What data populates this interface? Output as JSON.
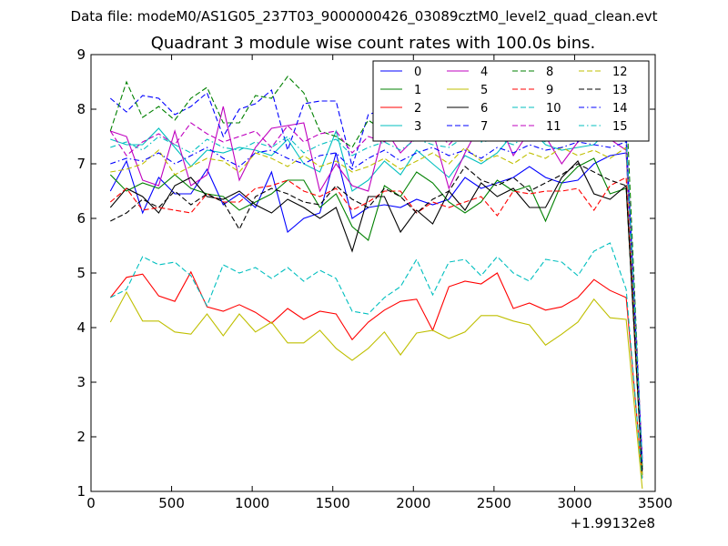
{
  "header": {
    "datafile": "Data file: modeM0/AS1G05_237T03_9000000426_03089cztM0_level2_quad_clean.evt"
  },
  "chart_data": {
    "type": "line",
    "title": "Quadrant 3 module wise count rates with 100.0s bins.",
    "xlabel": "",
    "ylabel": "",
    "offset_label": "+1.99132e8",
    "xlim": [
      0,
      3500
    ],
    "ylim": [
      1,
      9
    ],
    "xticks": [
      0,
      500,
      1000,
      1500,
      2000,
      2500,
      3000,
      3500
    ],
    "xtick_labels": [
      "0",
      "500",
      "1000",
      "1500",
      "2000",
      "2500",
      "3000",
      "3500"
    ],
    "yticks": [
      1,
      2,
      3,
      4,
      5,
      6,
      7,
      8,
      9
    ],
    "ytick_labels": [
      "1",
      "2",
      "3",
      "4",
      "5",
      "6",
      "7",
      "8",
      "9"
    ],
    "grid": false,
    "legend_position": "top-right",
    "legend_columns": 4,
    "x": [
      120,
      220,
      320,
      420,
      520,
      620,
      720,
      820,
      920,
      1020,
      1120,
      1220,
      1320,
      1420,
      1520,
      1620,
      1720,
      1820,
      1920,
      2020,
      2120,
      2220,
      2320,
      2420,
      2520,
      2620,
      2720,
      2820,
      2920,
      3020,
      3120,
      3220,
      3320,
      3420
    ],
    "series": [
      {
        "name": "0",
        "color": "#0000ff",
        "dash": "solid",
        "values": [
          6.5,
          7.05,
          6.1,
          6.75,
          6.45,
          6.45,
          6.9,
          6.25,
          6.45,
          6.2,
          6.85,
          5.75,
          6.0,
          6.1,
          7.2,
          6.0,
          6.2,
          6.25,
          6.2,
          6.35,
          6.25,
          6.35,
          6.75,
          6.55,
          6.65,
          6.75,
          6.95,
          6.75,
          6.65,
          6.7,
          7.0,
          7.15,
          7.2,
          1.4
        ]
      },
      {
        "name": "1",
        "color": "#008000",
        "dash": "solid",
        "values": [
          6.8,
          6.5,
          6.65,
          6.55,
          6.8,
          6.55,
          6.45,
          6.4,
          6.15,
          6.3,
          6.45,
          6.7,
          6.7,
          6.2,
          6.45,
          5.85,
          5.6,
          6.6,
          6.4,
          6.85,
          6.65,
          6.3,
          6.1,
          6.3,
          6.7,
          6.5,
          6.6,
          5.95,
          6.65,
          6.95,
          7.1,
          6.45,
          6.55,
          1.4
        ]
      },
      {
        "name": "2",
        "color": "#ff0000",
        "dash": "solid",
        "values": [
          4.55,
          4.92,
          4.98,
          4.58,
          4.48,
          5.02,
          4.38,
          4.3,
          4.42,
          4.28,
          4.08,
          4.35,
          4.15,
          4.3,
          4.25,
          3.78,
          4.1,
          4.32,
          4.48,
          4.52,
          3.95,
          4.75,
          4.85,
          4.8,
          5.0,
          4.35,
          4.45,
          4.32,
          4.38,
          4.55,
          4.88,
          4.68,
          4.55,
          1.25
        ]
      },
      {
        "name": "3",
        "color": "#00bfbf",
        "dash": "solid",
        "values": [
          7.45,
          7.35,
          7.35,
          7.65,
          7.3,
          6.95,
          7.25,
          7.2,
          7.3,
          7.25,
          7.15,
          7.45,
          7.0,
          6.85,
          7.6,
          6.5,
          6.7,
          7.05,
          6.8,
          7.25,
          7.0,
          6.75,
          7.15,
          7.0,
          7.2,
          7.55,
          7.65,
          7.35,
          7.25,
          7.3,
          7.35,
          7.65,
          7.5,
          1.45
        ]
      },
      {
        "name": "4",
        "color": "#bf00bf",
        "dash": "solid",
        "values": [
          7.6,
          7.5,
          6.7,
          6.6,
          7.6,
          6.6,
          6.8,
          8.05,
          6.7,
          7.3,
          7.65,
          7.7,
          7.75,
          6.5,
          7.0,
          6.6,
          6.5,
          7.65,
          7.2,
          7.5,
          7.6,
          6.55,
          7.2,
          7.75,
          7.85,
          7.15,
          7.6,
          7.5,
          7.0,
          7.4,
          7.6,
          7.45,
          7.25,
          1.6
        ]
      },
      {
        "name": "5",
        "color": "#bfbf00",
        "dash": "solid",
        "values": [
          4.1,
          4.65,
          4.12,
          4.12,
          3.92,
          3.88,
          4.25,
          3.85,
          4.25,
          3.92,
          4.1,
          3.72,
          3.72,
          3.95,
          3.62,
          3.4,
          3.62,
          3.92,
          3.5,
          3.9,
          3.95,
          3.8,
          3.92,
          4.22,
          4.22,
          4.12,
          4.05,
          3.68,
          3.88,
          4.1,
          4.52,
          4.18,
          4.15,
          1.05
        ]
      },
      {
        "name": "6",
        "color": "#000000",
        "dash": "solid",
        "values": [
          6.2,
          6.55,
          6.4,
          6.1,
          6.6,
          6.75,
          6.4,
          6.35,
          6.5,
          6.25,
          6.1,
          6.35,
          6.2,
          6.0,
          6.2,
          5.4,
          6.4,
          6.4,
          5.75,
          6.15,
          5.9,
          6.5,
          6.15,
          6.65,
          6.4,
          6.55,
          6.2,
          6.2,
          6.75,
          7.05,
          6.45,
          6.35,
          6.6,
          1.3
        ]
      },
      {
        "name": "7",
        "color": "#0000ff",
        "dash": "dashed",
        "values": [
          8.2,
          7.95,
          8.25,
          8.2,
          7.9,
          8.05,
          8.3,
          7.5,
          8.0,
          8.1,
          8.35,
          7.25,
          8.1,
          8.15,
          8.15,
          6.95,
          7.9,
          8.0,
          7.9,
          8.0,
          8.05,
          7.6,
          8.0,
          8.1,
          7.6,
          8.2,
          8.05,
          8.4,
          8.2,
          8.85,
          8.3,
          8.2,
          7.55,
          1.5
        ]
      },
      {
        "name": "8",
        "color": "#008000",
        "dash": "dashed",
        "values": [
          7.6,
          8.5,
          7.85,
          8.05,
          7.8,
          8.2,
          8.4,
          7.75,
          7.75,
          8.25,
          8.2,
          8.6,
          8.3,
          7.6,
          7.5,
          7.3,
          7.8,
          7.6,
          7.7,
          7.9,
          7.8,
          7.65,
          8.0,
          8.1,
          7.85,
          8.0,
          8.2,
          7.7,
          7.95,
          8.1,
          7.95,
          7.75,
          8.15,
          1.45
        ]
      },
      {
        "name": "9",
        "color": "#ff0000",
        "dash": "dashed",
        "values": [
          6.3,
          6.55,
          6.15,
          6.2,
          6.15,
          6.1,
          6.45,
          6.3,
          6.3,
          6.55,
          6.6,
          6.7,
          6.5,
          6.4,
          6.55,
          6.15,
          6.3,
          6.5,
          6.5,
          6.1,
          6.3,
          6.2,
          6.3,
          6.4,
          6.05,
          6.5,
          6.45,
          6.5,
          6.5,
          6.55,
          6.15,
          6.6,
          6.75,
          1.35
        ]
      },
      {
        "name": "10",
        "color": "#00bfbf",
        "dash": "dashed",
        "values": [
          4.55,
          4.7,
          5.3,
          5.15,
          5.2,
          4.95,
          4.4,
          5.15,
          5.0,
          5.1,
          4.9,
          5.1,
          4.85,
          5.05,
          4.9,
          4.3,
          4.25,
          4.55,
          4.75,
          5.25,
          4.6,
          5.2,
          5.25,
          4.95,
          5.3,
          5.0,
          4.85,
          5.25,
          5.2,
          4.95,
          5.4,
          5.55,
          4.7,
          1.2
        ]
      },
      {
        "name": "11",
        "color": "#bf00bf",
        "dash": "dashed",
        "values": [
          7.6,
          7.15,
          7.4,
          7.55,
          7.35,
          7.75,
          7.55,
          7.4,
          7.5,
          7.6,
          7.3,
          7.7,
          7.4,
          7.55,
          7.6,
          7.2,
          7.5,
          7.4,
          7.6,
          7.5,
          7.7,
          7.35,
          7.65,
          7.5,
          7.7,
          7.45,
          7.6,
          7.7,
          7.55,
          7.65,
          7.45,
          7.6,
          7.5,
          1.6
        ]
      },
      {
        "name": "12",
        "color": "#bfbf00",
        "dash": "dashed",
        "values": [
          6.85,
          6.9,
          7.0,
          7.25,
          6.8,
          6.95,
          7.1,
          7.05,
          6.85,
          7.2,
          7.1,
          6.95,
          7.15,
          6.95,
          7.05,
          6.85,
          6.95,
          7.1,
          6.9,
          7.05,
          7.2,
          7.0,
          7.3,
          7.05,
          7.15,
          7.0,
          7.2,
          7.1,
          7.3,
          7.15,
          7.25,
          7.1,
          7.3,
          1.3
        ]
      },
      {
        "name": "13",
        "color": "#000000",
        "dash": "dashed",
        "values": [
          5.95,
          6.1,
          6.35,
          6.2,
          6.5,
          6.25,
          6.45,
          6.3,
          5.8,
          6.4,
          6.55,
          6.45,
          6.3,
          6.25,
          6.6,
          6.35,
          6.2,
          6.55,
          6.4,
          6.1,
          6.35,
          6.5,
          6.95,
          6.7,
          6.6,
          6.75,
          6.5,
          6.65,
          6.8,
          7.0,
          6.85,
          6.7,
          6.6,
          1.35
        ]
      },
      {
        "name": "14",
        "color": "#0000ff",
        "dash": "dashdot",
        "values": [
          7.0,
          7.1,
          7.05,
          7.2,
          7.0,
          7.15,
          7.3,
          7.1,
          6.95,
          7.2,
          7.25,
          7.1,
          7.0,
          7.15,
          7.2,
          6.9,
          7.1,
          7.25,
          7.05,
          7.2,
          7.3,
          7.15,
          7.25,
          7.1,
          7.3,
          7.2,
          7.35,
          7.25,
          7.3,
          7.4,
          7.35,
          7.3,
          7.4,
          1.5
        ]
      },
      {
        "name": "15",
        "color": "#00bfbf",
        "dash": "dashdot",
        "values": [
          7.3,
          7.4,
          7.25,
          7.5,
          7.35,
          7.2,
          7.45,
          7.3,
          7.25,
          7.4,
          7.3,
          7.5,
          7.2,
          7.35,
          7.45,
          7.15,
          7.3,
          7.4,
          7.25,
          7.45,
          7.35,
          7.3,
          7.5,
          7.4,
          7.45,
          7.35,
          7.55,
          7.4,
          7.5,
          7.45,
          7.6,
          7.55,
          7.45,
          1.55
        ]
      }
    ]
  }
}
